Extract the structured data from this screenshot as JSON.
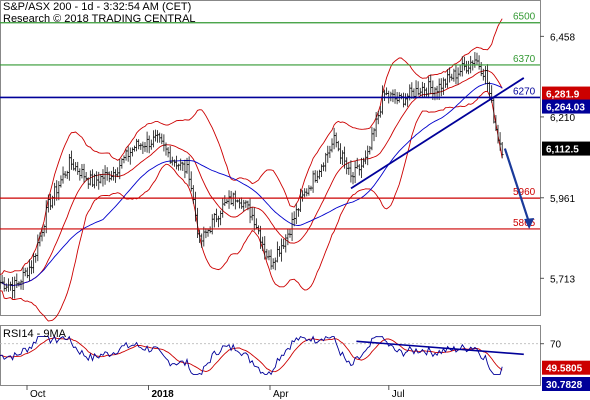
{
  "header": {
    "title": "S&P/ASX 200 - 1d - 3:32:54 AM (CET)",
    "research": "Research © 2018 TRADING CENTRAL"
  },
  "rsi_panel": {
    "title": "RSI14 - 9MA"
  },
  "colors": {
    "resistance": "#339933",
    "support": "#cc0000",
    "pivot": "#000099",
    "bollinger": "#cc0000",
    "ma": "#0000cc",
    "arrow": "#1a3a9a",
    "rsi_line": "#000099",
    "rsi_ma": "#cc0000"
  },
  "chart_data": [
    {
      "type": "line",
      "subtype": "candlestick-technical",
      "title": "S&P/ASX 200 - 1d - 3:32:54 AM (CET)",
      "x_ticks": [
        "Oct",
        "2018",
        "Apr",
        "Jul"
      ],
      "y_ticks": [
        6458,
        6210,
        5961,
        5713
      ],
      "ylim": [
        5600,
        6570
      ],
      "last_price": "6,112.5",
      "price_tags": [
        {
          "label": "6,281.9",
          "value": 6281.9,
          "color": "#cc0000"
        },
        {
          "label": "6,264.03",
          "value": 6264.03,
          "color": "#000099"
        },
        {
          "label": "6,112.5",
          "value": 6112.5,
          "color": "#000000"
        }
      ],
      "levels": [
        {
          "label": "6500",
          "value": 6500,
          "kind": "resistance"
        },
        {
          "label": "6370",
          "value": 6370,
          "kind": "resistance"
        },
        {
          "label": "6270",
          "value": 6270,
          "kind": "pivot"
        },
        {
          "label": "5960",
          "value": 5960,
          "kind": "support"
        },
        {
          "label": "5865",
          "value": 5865,
          "kind": "support"
        }
      ],
      "price_path": [
        [
          0,
          5700
        ],
        [
          0.03,
          5690
        ],
        [
          0.06,
          5760
        ],
        [
          0.09,
          5940
        ],
        [
          0.13,
          6070
        ],
        [
          0.17,
          6010
        ],
        [
          0.21,
          6040
        ],
        [
          0.25,
          6120
        ],
        [
          0.29,
          6140
        ],
        [
          0.32,
          6080
        ],
        [
          0.35,
          6040
        ],
        [
          0.37,
          5820
        ],
        [
          0.41,
          5930
        ],
        [
          0.44,
          5970
        ],
        [
          0.47,
          5900
        ],
        [
          0.5,
          5760
        ],
        [
          0.53,
          5840
        ],
        [
          0.56,
          5960
        ],
        [
          0.59,
          6050
        ],
        [
          0.62,
          6140
        ],
        [
          0.65,
          6020
        ],
        [
          0.68,
          6080
        ],
        [
          0.71,
          6280
        ],
        [
          0.74,
          6260
        ],
        [
          0.78,
          6300
        ],
        [
          0.81,
          6300
        ],
        [
          0.85,
          6350
        ],
        [
          0.88,
          6390
        ],
        [
          0.9,
          6340
        ],
        [
          0.92,
          6160
        ],
        [
          0.93,
          6112.5
        ]
      ],
      "trend_line": [
        [
          0.65,
          5990
        ],
        [
          0.97,
          6330
        ]
      ],
      "projection": [
        [
          0.935,
          6112.5
        ],
        [
          0.98,
          5865
        ]
      ]
    },
    {
      "type": "line",
      "title": "RSI14 - 9MA",
      "y_ticks": [
        70
      ],
      "ylim": [
        0,
        100
      ],
      "value_tags": [
        {
          "label": "49.5805",
          "value": 49.5805,
          "color": "#cc0000"
        },
        {
          "label": "30.7828",
          "value": 30.7828,
          "color": "#000099"
        }
      ],
      "trend_line": [
        [
          0.66,
          74
        ],
        [
          0.97,
          52
        ]
      ]
    }
  ]
}
